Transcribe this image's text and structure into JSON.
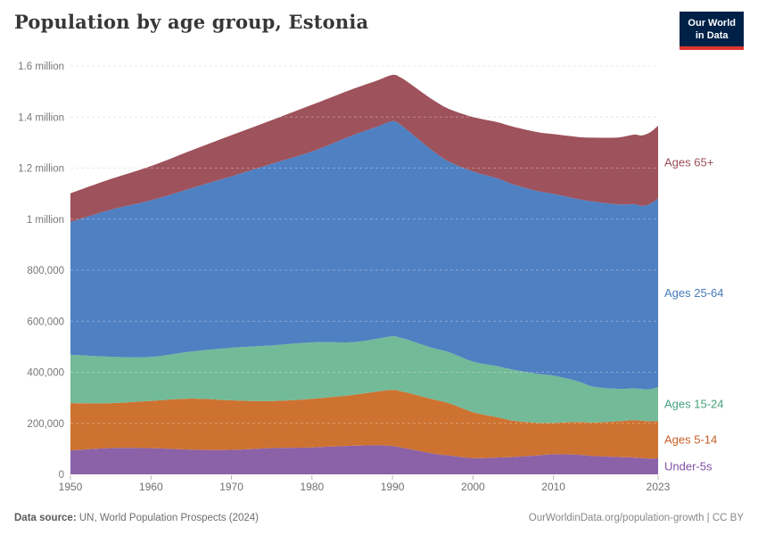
{
  "header": {
    "title": "Population by age group, Estonia",
    "logo": {
      "line1": "Our World",
      "line2": "in Data"
    }
  },
  "footer": {
    "source_label": "Data source:",
    "source_value": "UN, World Population Prospects (2024)",
    "right_note": "OurWorldinData.org/population-growth | CC BY"
  },
  "chart_data": {
    "type": "area",
    "stacked": true,
    "title": "Population by age group, Estonia",
    "xlabel": "",
    "ylabel": "",
    "unit": "people (values stored in thousands)",
    "grid": "dashed-horizontal",
    "legend_position": "right-edge-of-areas",
    "xlim": [
      1950,
      2023
    ],
    "ylim": [
      0,
      1600
    ],
    "x": [
      1950,
      1955,
      1960,
      1965,
      1970,
      1975,
      1980,
      1985,
      1988,
      1990,
      1991,
      1992,
      1995,
      1997,
      2000,
      2003,
      2005,
      2008,
      2010,
      2013,
      2015,
      2018,
      2020,
      2021,
      2022,
      2023
    ],
    "series": [
      {
        "name": "Under-5s",
        "fill": "#8b62a8",
        "label_color": "#8151a6",
        "values_thousands": [
          94,
          103,
          103,
          97,
          96,
          103,
          106,
          112,
          114,
          111,
          106,
          100,
          82,
          74,
          64,
          66,
          68,
          74,
          79,
          77,
          72,
          68,
          66,
          64,
          62,
          63
        ]
      },
      {
        "name": "Ages 5-14",
        "fill": "#ce7231",
        "label_color": "#c75f27",
        "values_thousands": [
          185,
          176,
          185,
          200,
          194,
          184,
          190,
          199,
          210,
          220,
          220,
          219,
          212,
          205,
          180,
          158,
          142,
          128,
          123,
          128,
          131,
          140,
          146,
          146,
          146,
          146
        ]
      },
      {
        "name": "Ages 15-24",
        "fill": "#73ba98",
        "label_color": "#47a07d",
        "values_thousands": [
          190,
          182,
          172,
          184,
          206,
          218,
          221,
          207,
          207,
          210,
          209,
          207,
          201,
          200,
          198,
          200,
          200,
          192,
          185,
          160,
          140,
          127,
          125,
          124,
          126,
          133
        ]
      },
      {
        "name": "Ages 25-64",
        "fill": "#4f80c2",
        "label_color": "#447abc",
        "values_thousands": [
          520,
          576,
          614,
          640,
          672,
          712,
          748,
          810,
          830,
          843,
          835,
          819,
          773,
          747,
          745,
          736,
          726,
          716,
          712,
          714,
          726,
          723,
          722,
          718,
          726,
          739
        ]
      },
      {
        "name": "Ages 65+",
        "fill": "#9e525b",
        "label_color": "#9a4e58",
        "values_thousands": [
          112,
          120,
          134,
          148,
          161,
          171,
          183,
          181,
          181,
          181,
          185,
          190,
          200,
          206,
          213,
          220,
          226,
          231,
          234,
          243,
          250,
          262,
          272,
          276,
          280,
          285
        ]
      }
    ],
    "y_axis": {
      "tick_values_thousands": [
        0,
        200,
        400,
        600,
        800,
        1000,
        1200,
        1400,
        1600
      ],
      "tick_labels": [
        "0",
        "200,000",
        "400,000",
        "600,000",
        "800,000",
        "1 million",
        "1.2 million",
        "1.4 million",
        "1.6 million"
      ]
    },
    "x_axis": {
      "tick_values": [
        1950,
        1960,
        1970,
        1980,
        1990,
        2000,
        2010,
        2023
      ],
      "tick_labels": [
        "1950",
        "1960",
        "1970",
        "1980",
        "1990",
        "2000",
        "2010",
        "2023"
      ]
    }
  }
}
